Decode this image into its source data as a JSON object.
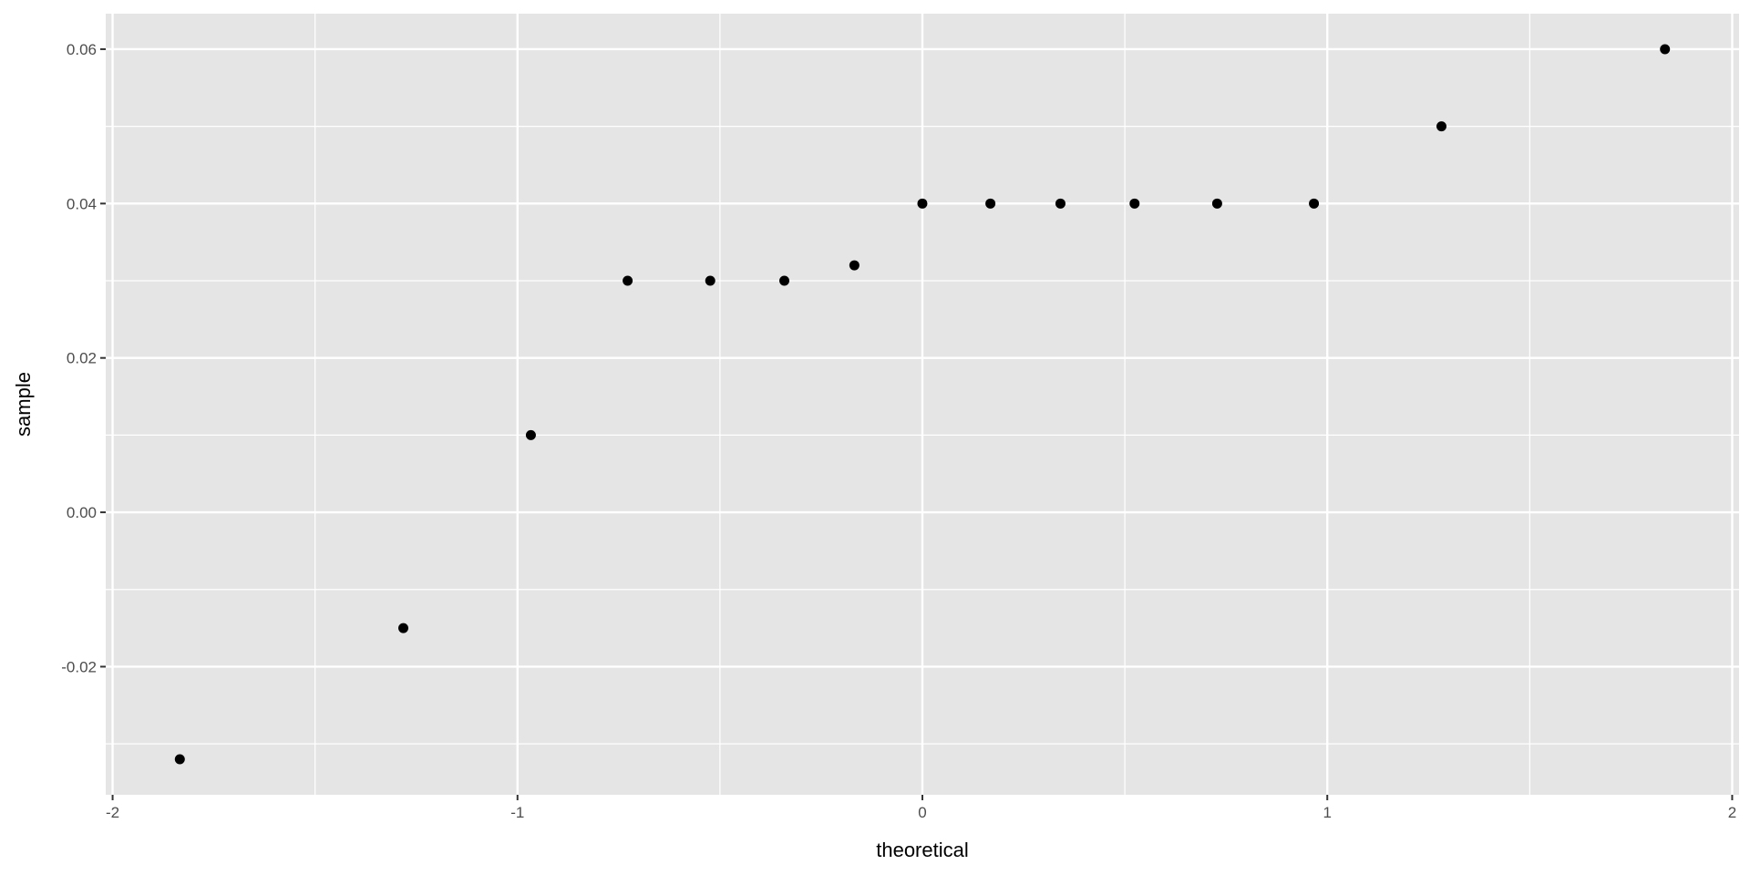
{
  "chart_data": {
    "type": "scatter",
    "title": "",
    "xlabel": "theoretical",
    "ylabel": "sample",
    "x": [
      -1.834,
      -1.282,
      -0.967,
      -0.728,
      -0.524,
      -0.341,
      -0.168,
      0,
      0.168,
      0.341,
      0.524,
      0.728,
      0.967,
      1.282,
      1.834
    ],
    "y": [
      -0.032,
      -0.015,
      0.01,
      0.03,
      0.03,
      0.03,
      0.032,
      0.04,
      0.04,
      0.04,
      0.04,
      0.04,
      0.04,
      0.05,
      0.06
    ],
    "xlim": [
      -2.017,
      2.017
    ],
    "ylim": [
      -0.0366,
      0.0646
    ],
    "xticks": [
      -2,
      -1,
      0,
      1,
      2
    ],
    "xtick_labels": [
      "-2",
      "-1",
      "0",
      "1",
      "2"
    ],
    "yticks": [
      -0.02,
      0,
      0.02,
      0.04,
      0.06
    ],
    "ytick_labels": [
      "-0.02",
      "0.00",
      "0.02",
      "0.04",
      "0.06"
    ],
    "grid": true,
    "colors": {
      "panel": "#e5e5e5",
      "grid": "#ffffff",
      "point": "#000000",
      "tick_text": "#4d4d4d"
    }
  }
}
